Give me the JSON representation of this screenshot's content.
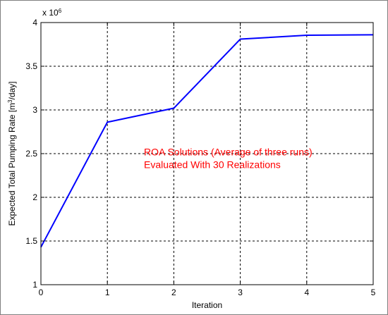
{
  "chart_data": {
    "type": "line",
    "title": "",
    "xlabel": "Iteration",
    "ylabel_prefix": "Expected Total Pumping Rate [m",
    "ylabel_exponent": "3",
    "ylabel_suffix": "/day]",
    "y_multiplier_base": "x 10",
    "y_multiplier_exponent": "6",
    "xlim": [
      0,
      5
    ],
    "ylim": [
      1,
      4
    ],
    "x_ticks": [
      0,
      1,
      2,
      3,
      4,
      5
    ],
    "x_tick_labels": [
      "0",
      "1",
      "2",
      "3",
      "4",
      "5"
    ],
    "y_ticks": [
      1,
      1.5,
      2,
      2.5,
      3,
      3.5,
      4
    ],
    "y_tick_labels": [
      "1",
      "1.5",
      "2",
      "2.5",
      "3",
      "3.5",
      "4"
    ],
    "grid": true,
    "grid_style": "dashed",
    "series": [
      {
        "color": "#0000ff",
        "x": [
          0,
          1,
          2,
          3,
          4,
          5
        ],
        "y": [
          1.43,
          2.86,
          3.02,
          3.81,
          3.855,
          3.86
        ]
      }
    ],
    "annotations": [
      {
        "lines": [
          "ROA Solutions (Average of three runs)",
          "Evaluated With 30 Realizations"
        ],
        "x": 1.55,
        "y": 2.48,
        "color": "#ff0000"
      }
    ]
  }
}
